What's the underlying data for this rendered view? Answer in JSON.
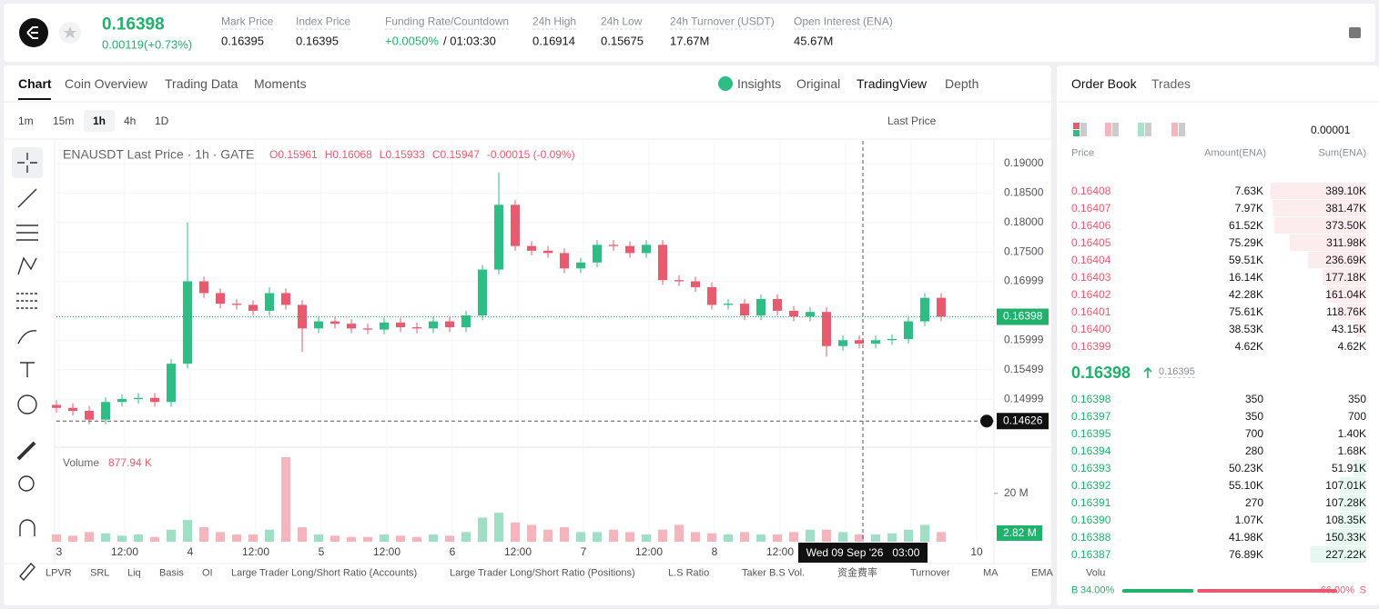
{
  "header": {
    "price": "0.16398",
    "change": "0.00119(+0.73%)",
    "stats": [
      {
        "label": "Mark Price",
        "value": "0.16395"
      },
      {
        "label": "Index Price",
        "value": "0.16395"
      },
      {
        "label": "Funding Rate/Countdown",
        "value": "+0.0050%",
        "extra": "/ 01:03:30"
      },
      {
        "label": "24h High",
        "value": "0.16914"
      },
      {
        "label": "24h Low",
        "value": "0.15675"
      },
      {
        "label": "24h Turnover (USDT)",
        "value": "17.67M"
      },
      {
        "label": "Open Interest (ENA)",
        "value": "45.67M"
      }
    ]
  },
  "tabs": [
    "Chart",
    "Coin Overview",
    "Trading Data",
    "Moments"
  ],
  "view_tabs": [
    "Insights",
    "Original",
    "TradingView",
    "Depth"
  ],
  "intervals": [
    "1m",
    "15m",
    "1h",
    "4h",
    "1D"
  ],
  "price_type": "Last Price",
  "chart_data": {
    "type": "candlestick",
    "title": "ENAUSDT Last Price · 1h · GATE",
    "legend_values": [
      "O0.15961",
      "H0.16068",
      "L0.15933",
      "C0.15947",
      "-0.00015 (-0.09%)"
    ],
    "up_color": "#2ebd85",
    "down_color": "#ea5a6e",
    "x_labels": [
      "3",
      "12:00",
      "4",
      "12:00",
      "5",
      "12:00",
      "6",
      "12:00",
      "7",
      "12:00",
      "8",
      "12:00",
      null,
      null,
      "10"
    ],
    "open": [
      0.149,
      0.1485,
      0.148,
      0.1465,
      0.1495,
      0.15,
      0.1502,
      0.1495,
      0.156,
      0.17,
      0.168,
      0.1662,
      0.166,
      0.165,
      0.168,
      0.166,
      0.162,
      0.1632,
      0.1628,
      0.162,
      0.1618,
      0.163,
      0.1622,
      0.162,
      0.1632,
      0.1622,
      0.1642,
      0.172,
      0.183,
      0.176,
      0.1752,
      0.1748,
      0.1722,
      0.1732,
      0.1762,
      0.176,
      0.1748,
      0.1762,
      0.1702,
      0.17,
      0.169,
      0.166,
      0.1662,
      0.1642,
      0.167,
      0.165,
      0.164,
      0.1648,
      0.159,
      0.16,
      0.1594,
      0.16,
      0.1602,
      0.1632,
      0.1672
    ],
    "high": [
      0.1498,
      0.1493,
      0.1488,
      0.1503,
      0.1508,
      0.151,
      0.151,
      0.1568,
      0.18,
      0.1708,
      0.1688,
      0.167,
      0.1668,
      0.169,
      0.1688,
      0.1668,
      0.164,
      0.164,
      0.1636,
      0.1628,
      0.1638,
      0.1638,
      0.163,
      0.164,
      0.164,
      0.165,
      0.1728,
      0.1885,
      0.1838,
      0.1768,
      0.176,
      0.1756,
      0.174,
      0.177,
      0.177,
      0.1768,
      0.177,
      0.177,
      0.171,
      0.1708,
      0.1698,
      0.167,
      0.167,
      0.1678,
      0.1678,
      0.1658,
      0.1656,
      0.1656,
      0.1608,
      0.1608,
      0.1608,
      0.161,
      0.164,
      0.168,
      0.168
    ],
    "low": [
      0.1477,
      0.1472,
      0.1457,
      0.1457,
      0.1487,
      0.1492,
      0.1487,
      0.1487,
      0.1552,
      0.1672,
      0.1654,
      0.1652,
      0.1642,
      0.1642,
      0.1652,
      0.158,
      0.1612,
      0.162,
      0.1612,
      0.161,
      0.161,
      0.1614,
      0.1612,
      0.1612,
      0.1614,
      0.1614,
      0.1634,
      0.1712,
      0.1752,
      0.1744,
      0.174,
      0.1714,
      0.1714,
      0.1724,
      0.1752,
      0.174,
      0.174,
      0.1694,
      0.1692,
      0.1682,
      0.1652,
      0.1652,
      0.1634,
      0.1634,
      0.1642,
      0.1632,
      0.1632,
      0.1572,
      0.1582,
      0.1586,
      0.1586,
      0.1592,
      0.1594,
      0.1624,
      0.1632
    ],
    "close": [
      0.1485,
      0.148,
      0.1465,
      0.1495,
      0.15,
      0.1502,
      0.1495,
      0.156,
      0.17,
      0.168,
      0.1662,
      0.166,
      0.165,
      0.168,
      0.166,
      0.162,
      0.1632,
      0.1628,
      0.162,
      0.1618,
      0.163,
      0.1622,
      0.162,
      0.1632,
      0.1622,
      0.1642,
      0.172,
      0.183,
      0.176,
      0.1752,
      0.1748,
      0.1722,
      0.1732,
      0.1762,
      0.176,
      0.1748,
      0.1762,
      0.1702,
      0.17,
      0.169,
      0.166,
      0.1662,
      0.1642,
      0.167,
      0.165,
      0.164,
      0.1648,
      0.159,
      0.16,
      0.1594,
      0.16,
      0.1602,
      0.1632,
      0.1672,
      0.164
    ],
    "ylim": [
      0.14182,
      0.19386
    ],
    "yticks": [
      {
        "value": 0.19,
        "label": "0.19000"
      },
      {
        "value": 0.185,
        "label": "0.18500"
      },
      {
        "value": 0.18,
        "label": "0.18000"
      },
      {
        "value": 0.175,
        "label": "0.17500"
      },
      0.16999,
      0.15999,
      0.15499,
      0.14999
    ],
    "last_price": 0.16398,
    "crosshair_price": 0.14626,
    "crosshair_time": "Wed 09 Sep '26   03:00",
    "volume": {
      "title": "Volume",
      "current": "877.94 K",
      "axis_tag": "2.82 M",
      "ylim": [
        0,
        38
      ],
      "yticks": [
        {
          "value": 20,
          "label": "20 M"
        }
      ],
      "values": [
        3,
        2.5,
        4,
        3.5,
        2.5,
        3,
        2,
        5,
        9,
        6,
        4,
        3,
        3,
        5,
        35,
        6,
        3,
        2.5,
        2,
        2,
        3,
        2.5,
        2,
        3,
        2.5,
        4,
        10,
        12,
        8,
        7,
        5,
        6,
        4,
        4,
        5,
        4,
        3,
        5,
        7,
        4,
        3.5,
        3,
        4,
        3,
        3,
        4,
        5,
        5,
        4,
        3,
        3,
        3.5,
        5,
        7,
        4
      ]
    }
  },
  "indicators": [
    "LPVR",
    "SRL",
    "Liq",
    "Basis",
    "OI",
    "Large Trader Long/Short Ratio (Accounts)",
    "Large Trader Long/Short Ratio (Positions)",
    "L.S Ratio",
    "Taker B.S Vol.",
    "资金费率",
    "Turnover",
    "MA",
    "EMA",
    "Volu"
  ],
  "order_book": {
    "tabs": [
      "Order Book",
      "Trades"
    ],
    "step": "0.00001",
    "columns": [
      "Price",
      "Amount(ENA)",
      "Sum(ENA)"
    ],
    "asks": [
      {
        "price": "0.16408",
        "amount": "7.63K",
        "sum": {
          "value": 389100,
          "label": "389.10K"
        }
      },
      {
        "price": "0.16407",
        "amount": "7.97K",
        "sum": {
          "value": 381470,
          "label": "381.47K"
        }
      },
      {
        "price": "0.16406",
        "amount": "61.52K",
        "sum": {
          "value": 373500,
          "label": "373.50K"
        }
      },
      {
        "price": "0.16405",
        "amount": "75.29K",
        "sum": {
          "value": 311980,
          "label": "311.98K"
        }
      },
      {
        "price": "0.16404",
        "amount": "59.51K",
        "sum": {
          "value": 236690,
          "label": "236.69K"
        }
      },
      {
        "price": "0.16403",
        "amount": "16.14K",
        "sum": {
          "value": 177180,
          "label": "177.18K"
        }
      },
      {
        "price": "0.16402",
        "amount": "42.28K",
        "sum": {
          "value": 161040,
          "label": "161.04K"
        }
      },
      {
        "price": "0.16401",
        "amount": "75.61K",
        "sum": {
          "value": 118760,
          "label": "118.76K"
        }
      },
      {
        "price": "0.16400",
        "amount": "38.53K",
        "sum": {
          "value": 43150,
          "label": "43.15K"
        }
      },
      {
        "price": "0.16399",
        "amount": "4.62K",
        "sum": {
          "value": 4620,
          "label": "4.62K"
        }
      }
    ],
    "mid": {
      "price": "0.16398",
      "mark": "0.16395"
    },
    "bids": [
      {
        "price": "0.16398",
        "amount": "350",
        "sum": 350
      },
      {
        "price": "0.16397",
        "amount": "350",
        "sum": 700
      },
      {
        "price": "0.16395",
        "amount": "700",
        "sum": {
          "value": 1400,
          "label": "1.40K"
        }
      },
      {
        "price": "0.16394",
        "amount": "280",
        "sum": {
          "value": 1680,
          "label": "1.68K"
        }
      },
      {
        "price": "0.16393",
        "amount": "50.23K",
        "sum": {
          "value": 51910,
          "label": "51.91K"
        }
      },
      {
        "price": "0.16392",
        "amount": "55.10K",
        "sum": {
          "value": 107010,
          "label": "107.01K"
        }
      },
      {
        "price": "0.16391",
        "amount": "270",
        "sum": {
          "value": 107280,
          "label": "107.28K"
        }
      },
      {
        "price": "0.16390",
        "amount": "1.07K",
        "sum": {
          "value": 108350,
          "label": "108.35K"
        }
      },
      {
        "price": "0.16388",
        "amount": "41.98K",
        "sum": {
          "value": 150330,
          "label": "150.33K"
        }
      },
      {
        "price": "0.16387",
        "amount": "76.89K",
        "sum": {
          "value": 227220,
          "label": "227.22K"
        }
      }
    ],
    "depth_xlim": [
      0,
      389100
    ],
    "ratio": {
      "labels": [
        "B",
        "S"
      ],
      "values": [
        34,
        66
      ],
      "value_labels": [
        "34.00%",
        "66.00%"
      ]
    }
  }
}
